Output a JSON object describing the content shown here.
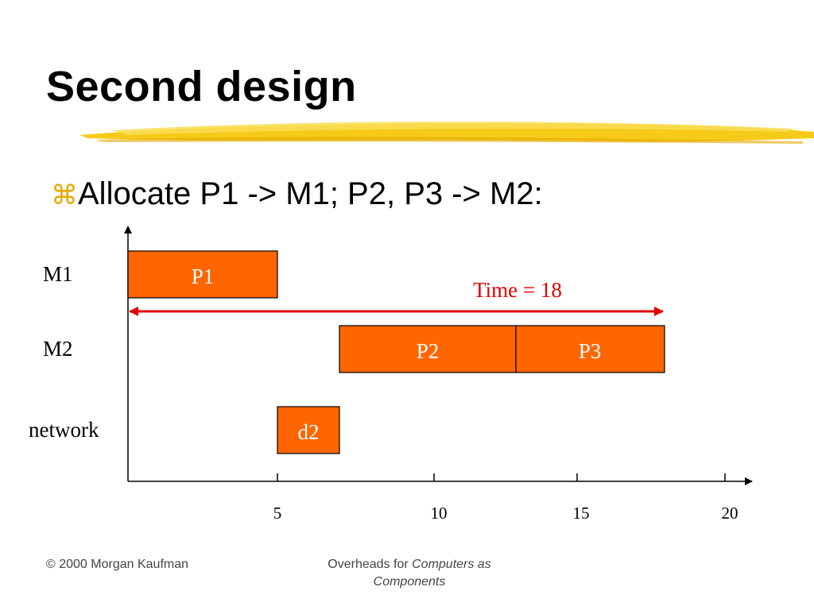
{
  "slide": {
    "title": "Second design",
    "bullet_glyph": "⌘",
    "bullet_text": "Allocate P1 -> M1; P2, P3 -> M2:",
    "accent_color": "#f2c200"
  },
  "gantt": {
    "rows": [
      "M1",
      "M2",
      "network"
    ],
    "x_ticks": [
      "5",
      "10",
      "15",
      "20"
    ],
    "tasks": [
      {
        "label": "P1",
        "row": "M1",
        "start": 0,
        "end": 5
      },
      {
        "label": "P2",
        "row": "M2",
        "start": 7,
        "end": 13
      },
      {
        "label": "P3",
        "row": "M2",
        "start": 13,
        "end": 18
      },
      {
        "label": "d2",
        "row": "network",
        "start": 5,
        "end": 7
      }
    ],
    "time_annotation": "Time = 18",
    "bar_color": "#ff6600",
    "annotation_color": "#e00000"
  },
  "footer": {
    "left": "© 2000 Morgan Kaufman",
    "center_prefix": "Overheads for ",
    "center_italic": "Computers as Components"
  }
}
